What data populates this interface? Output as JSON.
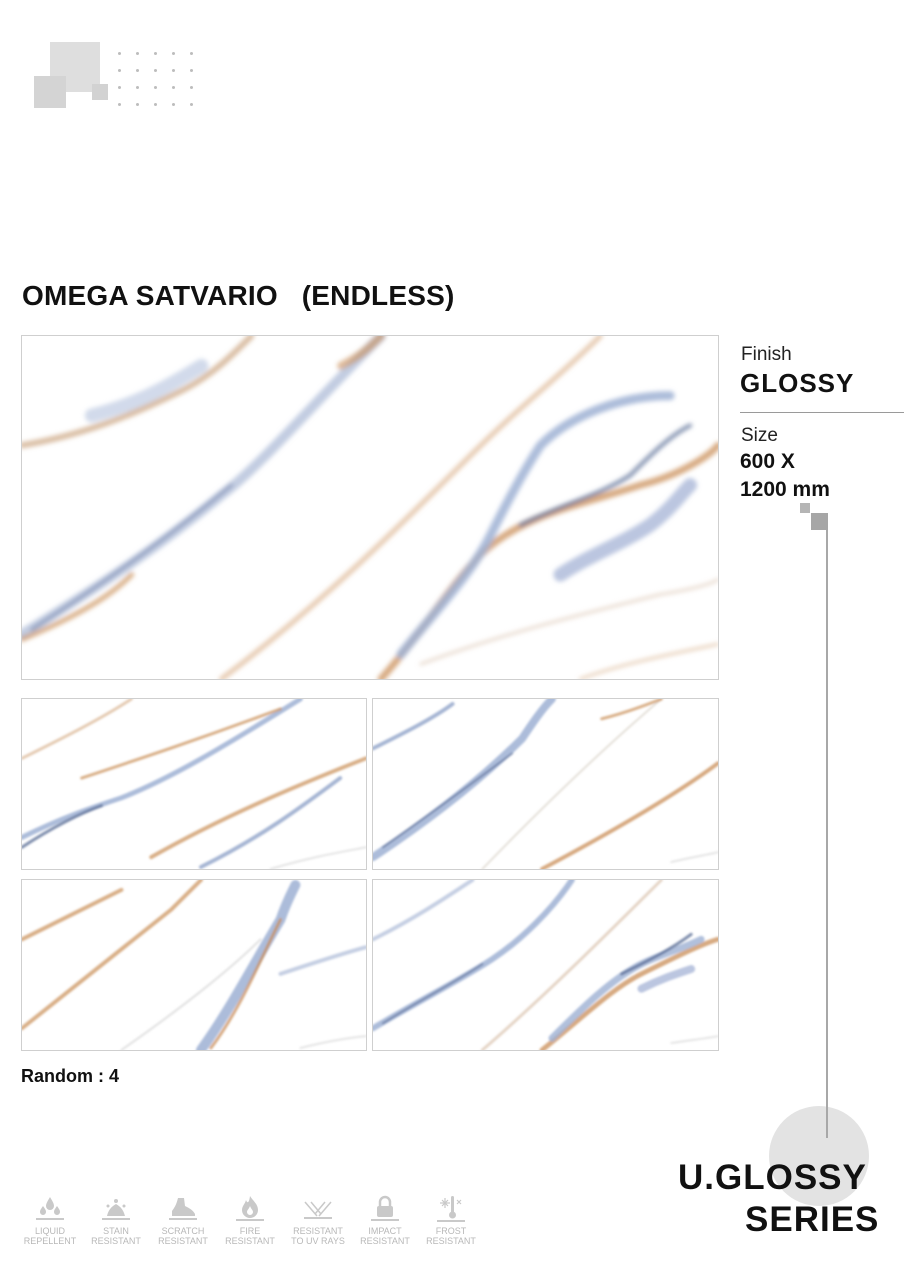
{
  "product": {
    "title": "OMEGA SATVARIO   (ENDLESS)",
    "finish_label": "Finish",
    "finish_value": "GLOSSY",
    "size_label": "Size",
    "size_value_line1": "600 X",
    "size_value_line2": "1200 mm",
    "random_text": "Random : 4"
  },
  "series": {
    "line1": "U.GLOSSY",
    "line2": "SERIES"
  },
  "features": [
    {
      "icon": "liquid-drops-icon",
      "line1": "LIQUID",
      "line2": "REPELLENT"
    },
    {
      "icon": "stain-icon",
      "line1": "STAIN",
      "line2": "RESISTANT"
    },
    {
      "icon": "shoe-icon",
      "line1": "SCRATCH",
      "line2": "RESISTANT"
    },
    {
      "icon": "flame-icon",
      "line1": "FIRE",
      "line2": "RESISTANT"
    },
    {
      "icon": "uv-rays-icon",
      "line1": "RESISTANT",
      "line2": "TO UV RAYS"
    },
    {
      "icon": "padlock-icon",
      "line1": "IMPACT",
      "line2": "RESISTANT"
    },
    {
      "icon": "frost-icon",
      "line1": "FROST",
      "line2": "RESISTANT"
    }
  ],
  "colors": {
    "vein_gold": "#c98d55",
    "vein_blue": "#8ea3c8",
    "vein_dark_blue": "#5c6f97",
    "accent_grey": "#a8a8a8"
  }
}
